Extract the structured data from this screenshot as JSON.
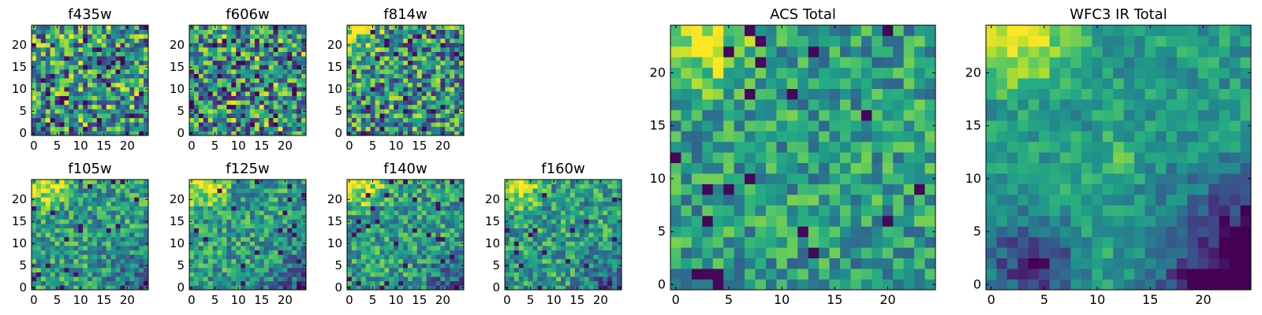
{
  "figure": {
    "colormap": "viridis",
    "colors": {
      "low": "#440154",
      "mid": "#21918c",
      "high": "#fde725",
      "axis": "#000000",
      "background": "#ffffff"
    }
  },
  "chart_data": [
    {
      "type": "heatmap",
      "title": "f435w",
      "size": 25,
      "xlim": [
        0,
        24
      ],
      "ylim": [
        0,
        24
      ],
      "xticks": [
        0,
        5,
        10,
        15,
        20
      ],
      "yticks": [
        0,
        5,
        10,
        15,
        20
      ],
      "seed": 11,
      "pattern": "noise",
      "grid": false
    },
    {
      "type": "heatmap",
      "title": "f606w",
      "size": 25,
      "xlim": [
        0,
        24
      ],
      "ylim": [
        0,
        24
      ],
      "xticks": [
        0,
        5,
        10,
        15,
        20
      ],
      "yticks": [
        0,
        5,
        10,
        15,
        20
      ],
      "seed": 23,
      "pattern": "noise",
      "grid": false
    },
    {
      "type": "heatmap",
      "title": "f814w",
      "size": 25,
      "xlim": [
        0,
        24
      ],
      "ylim": [
        0,
        24
      ],
      "xticks": [
        0,
        5,
        10,
        15,
        20
      ],
      "yticks": [
        0,
        5,
        10,
        15,
        20
      ],
      "seed": 37,
      "pattern": "noise-corner",
      "grid": false
    },
    {
      "type": "heatmap",
      "title": "f105w",
      "size": 25,
      "xlim": [
        0,
        24
      ],
      "ylim": [
        0,
        24
      ],
      "xticks": [
        0,
        5,
        10,
        15,
        20
      ],
      "yticks": [
        0,
        5,
        10,
        15,
        20
      ],
      "seed": 41,
      "pattern": "ir",
      "grid": false
    },
    {
      "type": "heatmap",
      "title": "f125w",
      "size": 25,
      "xlim": [
        0,
        24
      ],
      "ylim": [
        0,
        24
      ],
      "xticks": [
        0,
        5,
        10,
        15,
        20
      ],
      "yticks": [
        0,
        5,
        10,
        15,
        20
      ],
      "seed": 53,
      "pattern": "ir",
      "grid": false
    },
    {
      "type": "heatmap",
      "title": "f140w",
      "size": 25,
      "xlim": [
        0,
        24
      ],
      "ylim": [
        0,
        24
      ],
      "xticks": [
        0,
        5,
        10,
        15,
        20
      ],
      "yticks": [
        0,
        5,
        10,
        15,
        20
      ],
      "seed": 67,
      "pattern": "ir",
      "grid": false
    },
    {
      "type": "heatmap",
      "title": "f160w",
      "size": 25,
      "xlim": [
        0,
        24
      ],
      "ylim": [
        0,
        24
      ],
      "xticks": [
        0,
        5,
        10,
        15,
        20
      ],
      "yticks": [
        0,
        5,
        10,
        15,
        20
      ],
      "seed": 79,
      "pattern": "ir",
      "grid": false
    },
    {
      "type": "heatmap",
      "title": "ACS Total",
      "size": 25,
      "xlim": [
        0,
        24
      ],
      "ylim": [
        0,
        24
      ],
      "xticks": [
        0,
        5,
        10,
        15,
        20
      ],
      "yticks": [
        0,
        5,
        10,
        15,
        20
      ],
      "seed": 97,
      "pattern": "acs-total",
      "grid": false
    },
    {
      "type": "heatmap",
      "title": "WFC3 IR Total",
      "size": 25,
      "xlim": [
        0,
        24
      ],
      "ylim": [
        0,
        24
      ],
      "xticks": [
        0,
        5,
        10,
        15,
        20
      ],
      "yticks": [
        0,
        5,
        10,
        15,
        20
      ],
      "seed": 101,
      "pattern": "ir-total",
      "grid": false
    }
  ]
}
